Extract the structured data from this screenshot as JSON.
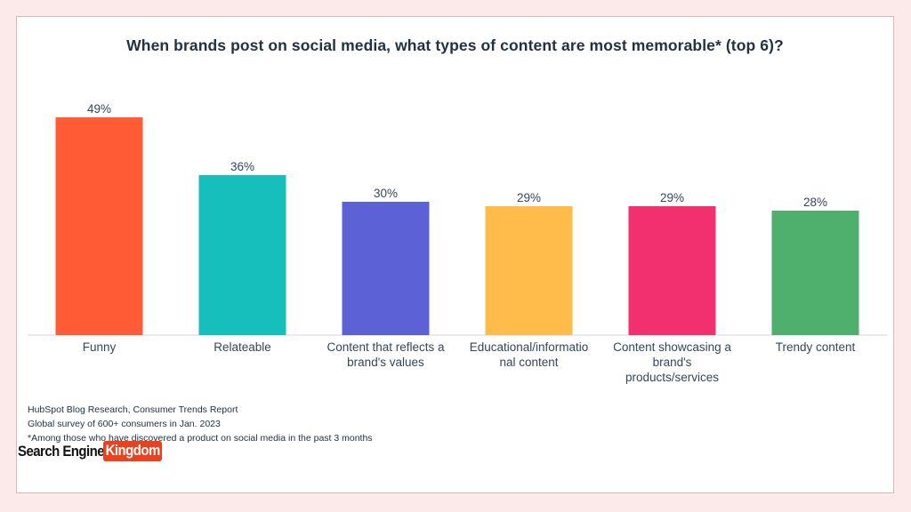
{
  "colors": {
    "page_background": "#fbeae9",
    "card_background": "#ffffff",
    "axis": "#cfd6de",
    "text": "#33475b",
    "logo_accent": "#e8421f"
  },
  "chart_data": {
    "type": "bar",
    "title": "When brands post on social media, what types of content are most memorable* (top 6)?",
    "categories": [
      "Funny",
      "Relateable",
      "Content that reflects a brand's values",
      "Educational/informational content",
      "Content showcasing a brand's products/services",
      "Trendy content"
    ],
    "category_label_lines": [
      [
        "Funny"
      ],
      [
        "Relateable"
      ],
      [
        "Content that reflects a",
        "brand's values"
      ],
      [
        "Educational/informatio",
        "nal content"
      ],
      [
        "Content showcasing a",
        "brand's",
        "products/services"
      ],
      [
        "Trendy content"
      ]
    ],
    "values": [
      49,
      36,
      30,
      29,
      29,
      28
    ],
    "value_labels": [
      "49%",
      "36%",
      "30%",
      "29%",
      "29%",
      "28%"
    ],
    "bar_colors": [
      "#ff5c35",
      "#16bfbc",
      "#5c62d6",
      "#ffbc4b",
      "#f2306f",
      "#4fb06d"
    ],
    "ylim": [
      0,
      50
    ],
    "xlabel": "",
    "ylabel": "",
    "grid": false,
    "legend": "none"
  },
  "notes": [
    "HubSpot Blog Research, Consumer Trends Report",
    "Global survey of 600+ consumers in Jan. 2023",
    "*Among those who have discovered a product on social media in the past 3 months"
  ],
  "logo": {
    "part1": "Search Engine",
    "part2": "Kingdom"
  }
}
